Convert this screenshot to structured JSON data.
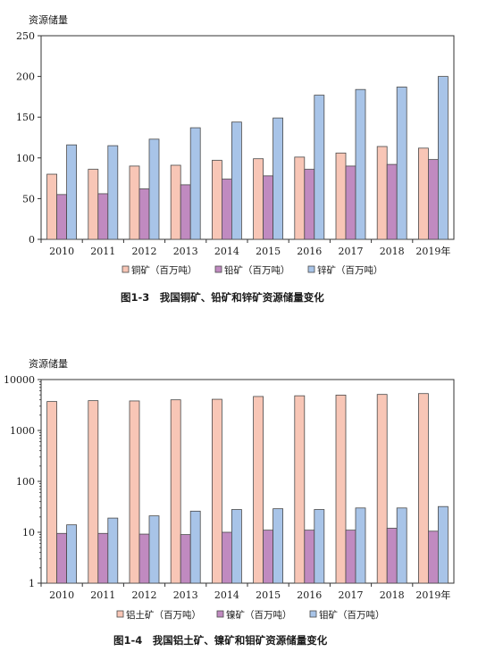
{
  "chart_data": [
    {
      "type": "bar",
      "ylabel": "资源储量",
      "categories": [
        "2010",
        "2011",
        "2012",
        "2013",
        "2014",
        "2015",
        "2016",
        "2017",
        "2018",
        "2019年"
      ],
      "ylim": [
        0,
        250
      ],
      "yticks": [
        0,
        50,
        100,
        150,
        200,
        250
      ],
      "log_scale": false,
      "series": [
        {
          "name": "铜矿（百万吨）",
          "color": "#f8c6b6",
          "values": [
            80,
            86,
            90,
            91,
            97,
            99,
            101,
            106,
            114,
            112
          ]
        },
        {
          "name": "铅矿（百万吨）",
          "color": "#c08ac0",
          "values": [
            55,
            56,
            62,
            67,
            74,
            78,
            86,
            90,
            92,
            98
          ]
        },
        {
          "name": "锌矿（百万吨）",
          "color": "#a8c4e8",
          "values": [
            116,
            115,
            123,
            137,
            144,
            149,
            177,
            184,
            187,
            200
          ]
        }
      ],
      "legend_position": "bottom",
      "caption": "图1-3　我国铜矿、铅矿和锌矿资源储量变化"
    },
    {
      "type": "bar",
      "ylabel": "资源储量",
      "categories": [
        "2010",
        "2011",
        "2012",
        "2013",
        "2014",
        "2015",
        "2016",
        "2017",
        "2018",
        "2019年"
      ],
      "ylim": [
        1,
        10000
      ],
      "yticks": [
        1,
        10,
        100,
        1000,
        10000
      ],
      "log_scale": true,
      "series": [
        {
          "name": "铝土矿（百万吨）",
          "color": "#f8c6b6",
          "values": [
            3700,
            3850,
            3800,
            4000,
            4100,
            4650,
            4800,
            4950,
            5100,
            5300
          ]
        },
        {
          "name": "镍矿（百万吨）",
          "color": "#c08ac0",
          "values": [
            9.5,
            9.5,
            9.2,
            9.0,
            10.0,
            11.0,
            11.0,
            11.0,
            12.0,
            10.5
          ]
        },
        {
          "name": "钼矿（百万吨）",
          "color": "#a8c4e8",
          "values": [
            14,
            19,
            21,
            26,
            28,
            29,
            28,
            30,
            30,
            32
          ]
        }
      ],
      "legend_position": "bottom",
      "caption": "图1-4　我国铝土矿、镍矿和钼矿资源储量变化"
    }
  ]
}
